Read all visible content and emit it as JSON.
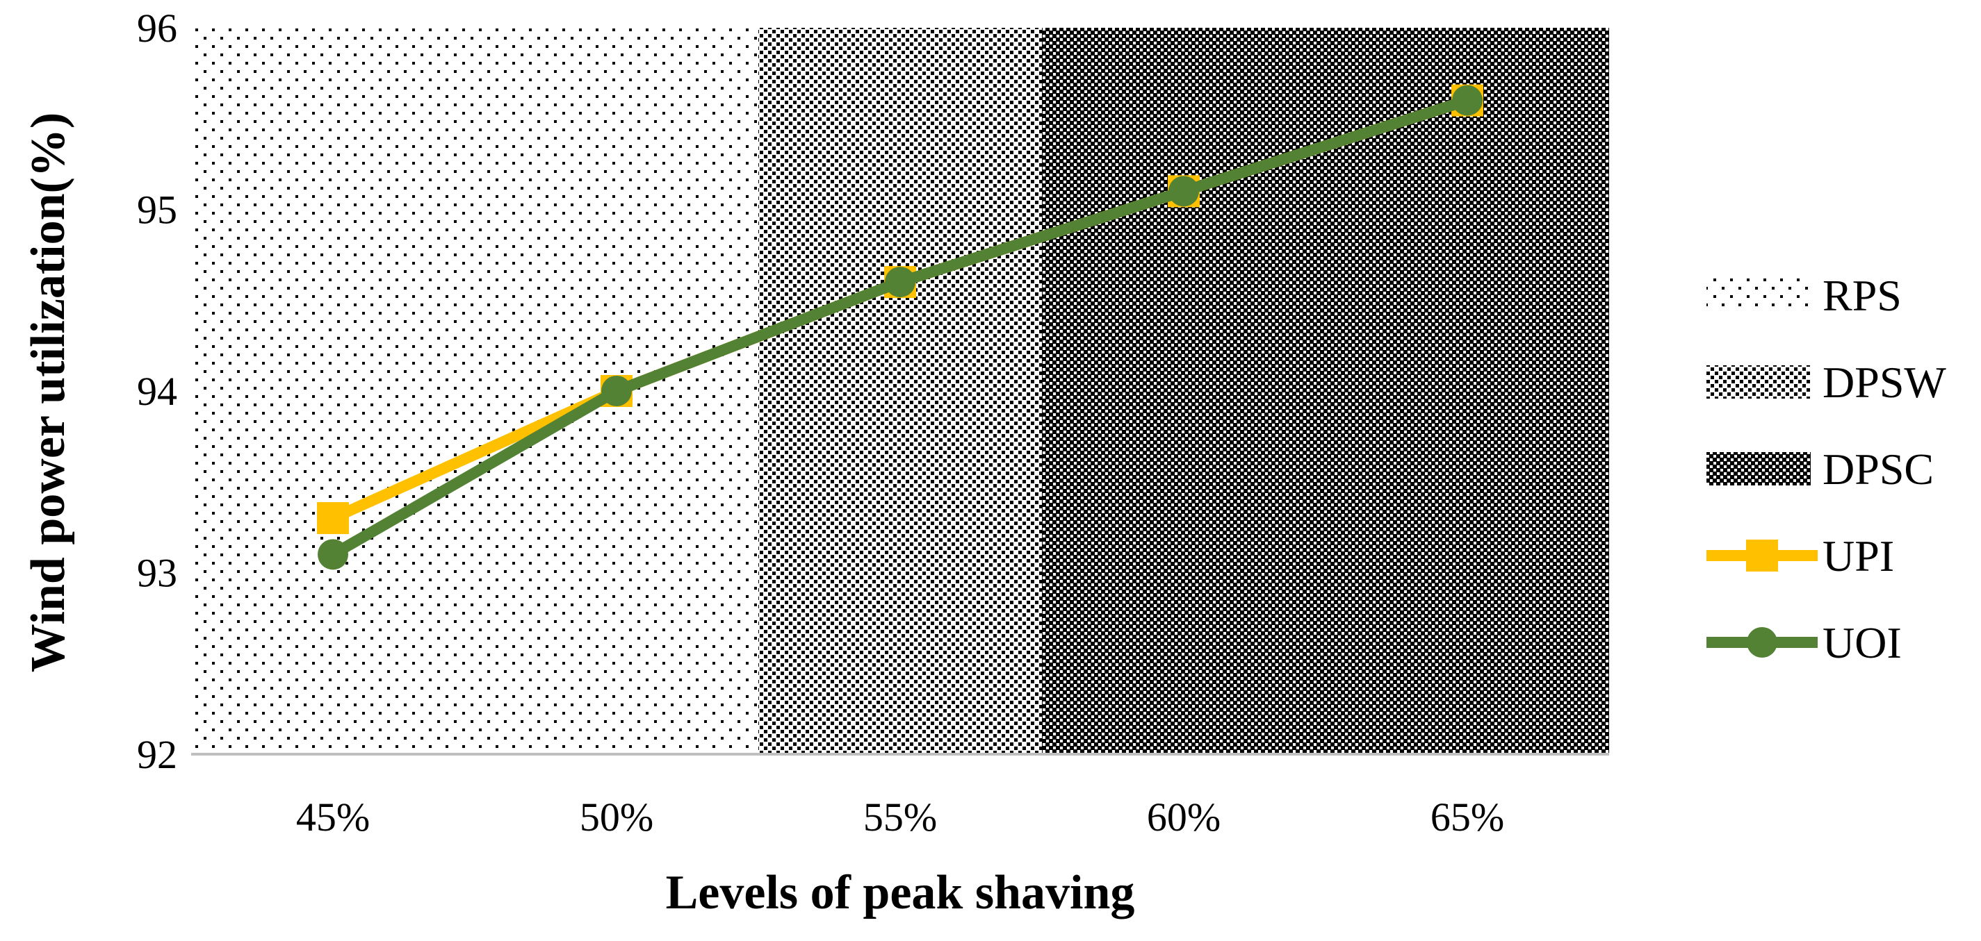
{
  "chart_data": {
    "type": "line",
    "title": "",
    "xlabel": "Levels of peak shaving",
    "ylabel": "Wind power utilization(%)",
    "categories": [
      "45%",
      "50%",
      "55%",
      "60%",
      "65%"
    ],
    "ylim": [
      92,
      96
    ],
    "yticks": [
      "92",
      "93",
      "94",
      "95",
      "96"
    ],
    "grid": false,
    "legend_position": "right",
    "regions": [
      {
        "name": "RPS",
        "from_category": "45%",
        "to_category": "50%",
        "pattern": "sparse-dots",
        "color": "#000000"
      },
      {
        "name": "DPSW",
        "from_category": "55%",
        "to_category": "55%",
        "pattern": "dense-dots",
        "color": "#000000"
      },
      {
        "name": "DPSC",
        "from_category": "60%",
        "to_category": "65%",
        "pattern": "checker",
        "color": "#000000"
      }
    ],
    "series": [
      {
        "name": "UPI",
        "values": [
          93.3,
          94.0,
          94.6,
          95.1,
          95.6
        ],
        "color": "#FFC000",
        "marker": "square"
      },
      {
        "name": "UOI",
        "values": [
          93.1,
          94.0,
          94.6,
          95.1,
          95.6
        ],
        "color": "#548235",
        "marker": "circle"
      }
    ]
  }
}
